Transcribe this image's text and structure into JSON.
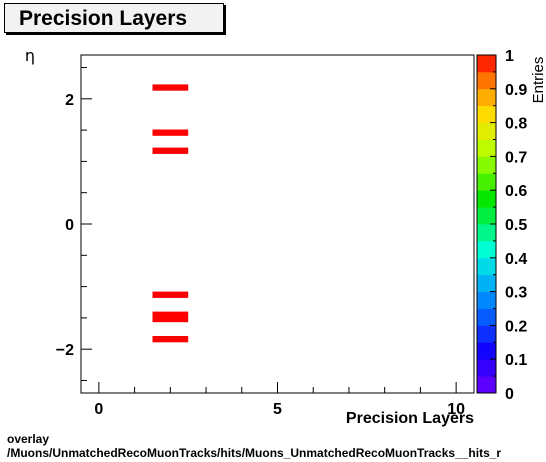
{
  "title": "Precision Layers",
  "footer": {
    "line1": "overlay",
    "line2": "/Muons/UnmatchedRecoMuonTracks/hits/Muons_UnmatchedRecoMuonTracks__hits_r"
  },
  "colors": {
    "bins": "#ff0000",
    "frame": "#000000"
  },
  "chart_data": {
    "type": "heatmap",
    "title": "Precision Layers",
    "xlabel": "Precision Layers",
    "ylabel": "η",
    "zlabel": "Entries",
    "xlim": [
      -0.5,
      10.5
    ],
    "ylim": [
      -2.7,
      2.7
    ],
    "zlim": [
      0,
      1
    ],
    "xticks": [
      0,
      5,
      10
    ],
    "yticks": [
      -2,
      0,
      2
    ],
    "zticks": [
      0,
      0.1,
      0.2,
      0.3,
      0.4,
      0.5,
      0.6,
      0.7,
      0.8,
      0.9,
      1
    ],
    "ytick_labels": [
      "−2",
      "0",
      "2"
    ],
    "grid": false,
    "bins": [
      {
        "x": [
          1.5,
          2.5
        ],
        "y": [
          2.13,
          2.23
        ],
        "z": 1
      },
      {
        "x": [
          1.5,
          2.5
        ],
        "y": [
          1.41,
          1.51
        ],
        "z": 1
      },
      {
        "x": [
          1.5,
          2.5
        ],
        "y": [
          1.12,
          1.22
        ],
        "z": 1
      },
      {
        "x": [
          1.5,
          2.5
        ],
        "y": [
          -1.18,
          -1.08
        ],
        "z": 1
      },
      {
        "x": [
          1.5,
          2.5
        ],
        "y": [
          -1.57,
          -1.4
        ],
        "z": 1
      },
      {
        "x": [
          1.5,
          2.5
        ],
        "y": [
          -1.89,
          -1.79
        ],
        "z": 1
      }
    ]
  }
}
